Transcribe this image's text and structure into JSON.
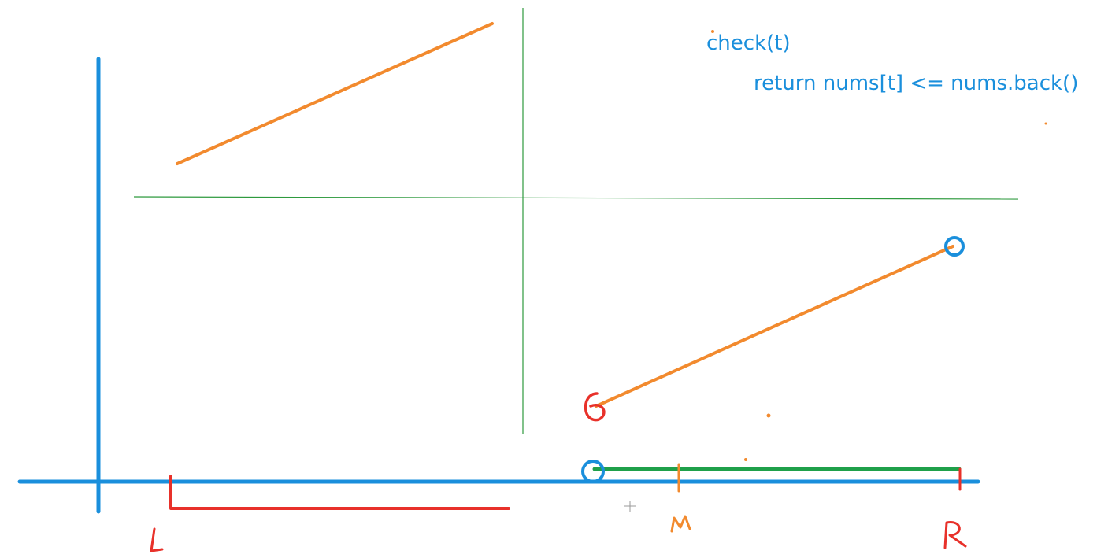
{
  "code": {
    "line1": "check(t)",
    "line2": "return nums[t] <= nums.back()"
  },
  "labels": {
    "left": "L",
    "mid": "M",
    "right": "R"
  },
  "colors": {
    "axis": "#1a8fdc",
    "segment": "#f28a2e",
    "divider": "#2e9a3e",
    "red": "#e8312a",
    "green_bar": "#1fa04a",
    "code_text": "#1a8fdc"
  }
}
